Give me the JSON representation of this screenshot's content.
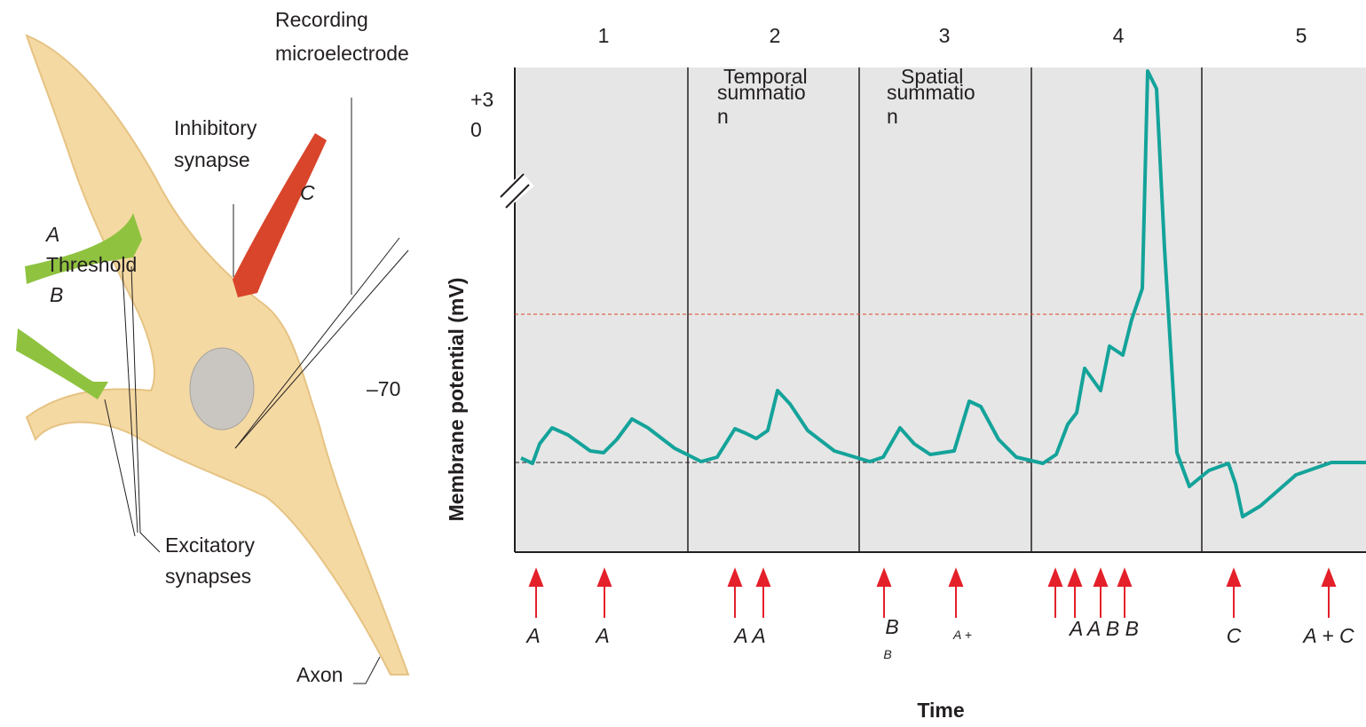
{
  "neuron": {
    "electrode_label": [
      "Recording",
      "microelectrode"
    ],
    "inhibitory_label": [
      "Inhibitory",
      "synapse"
    ],
    "inhibitory_letter": "C",
    "excitatory_letter_a": "A",
    "threshold_label": "Threshold",
    "excitatory_letter_b": "B",
    "excitatory_label": [
      "Excitatory",
      "synapses"
    ],
    "axon_label": "Axon",
    "resting_label": "–70",
    "peak_label": [
      "+3",
      "0"
    ]
  },
  "graph": {
    "section_numbers": [
      "1",
      "2",
      "3",
      "4",
      "5"
    ],
    "section_titles": [
      [
        "Temporal",
        "summatio",
        "n"
      ],
      [
        "Spatial",
        "summatio",
        "n"
      ]
    ],
    "y_axis_label": "Membrane potential (mV)",
    "x_axis_label": "Time",
    "stimuli": [
      "A",
      "A",
      "A A",
      "B",
      "B",
      "A +",
      "A A B B",
      "C",
      "A + C"
    ]
  }
}
